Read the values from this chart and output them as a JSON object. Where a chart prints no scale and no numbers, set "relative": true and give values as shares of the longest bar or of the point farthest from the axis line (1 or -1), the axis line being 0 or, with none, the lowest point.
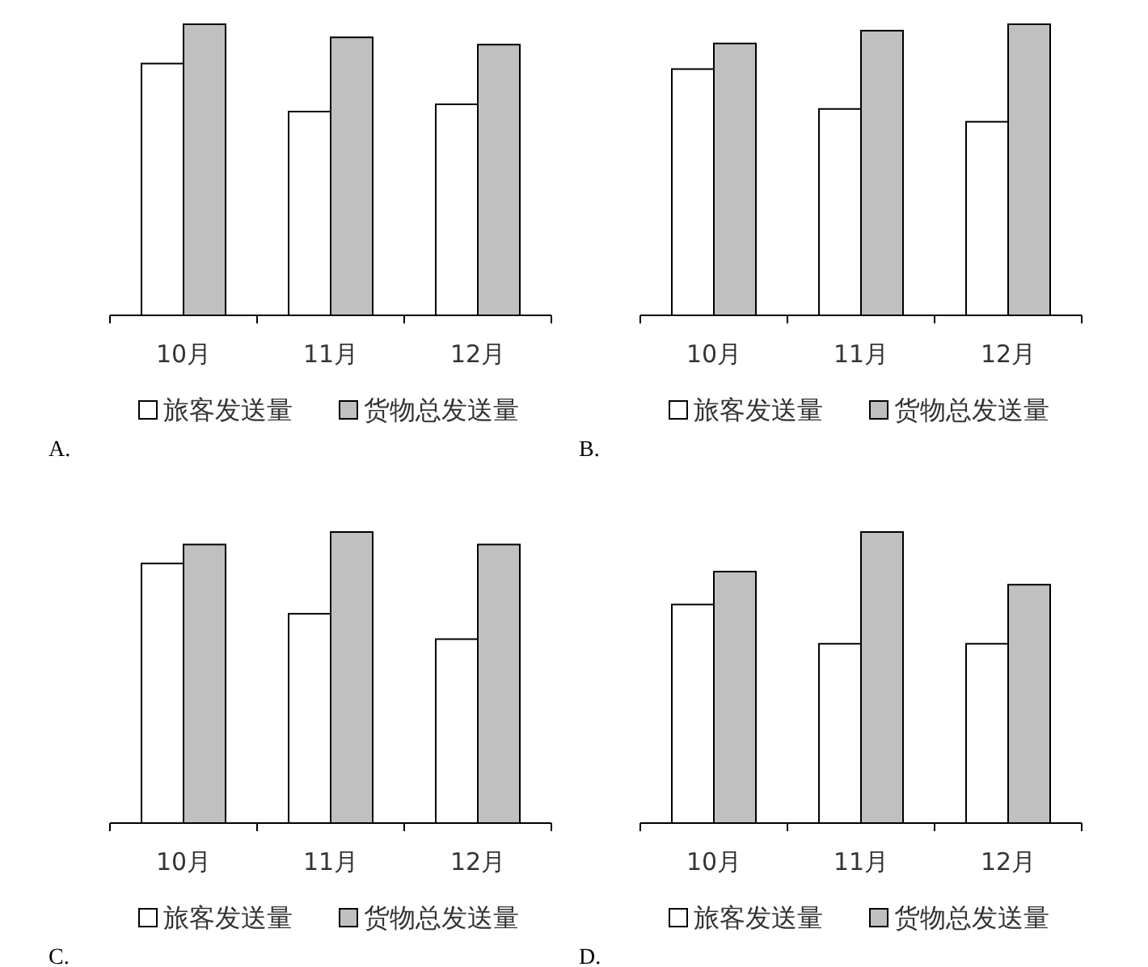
{
  "chart_data": [
    {
      "type": "bar",
      "relative": true,
      "categories": [
        "10月",
        "11月",
        "12月"
      ],
      "legend": "bottom",
      "annotations": [
        "A."
      ],
      "series": [
        {
          "name": "旅客发送量",
          "color": "#ffffff",
          "values": [
            0.865,
            0.7,
            0.725
          ]
        },
        {
          "name": "货物总发送量",
          "color": "#c0c0c0",
          "values": [
            1,
            0.955,
            0.93
          ]
        }
      ]
    },
    {
      "type": "bar",
      "relative": true,
      "categories": [
        "10月",
        "11月",
        "12月"
      ],
      "legend": "bottom",
      "annotations": [
        "B."
      ],
      "series": [
        {
          "name": "旅客发送量",
          "color": "#ffffff",
          "values": [
            0.846,
            0.709,
            0.665
          ]
        },
        {
          "name": "货物总发送量",
          "color": "#c0c0c0",
          "values": [
            0.934,
            0.978,
            1
          ]
        }
      ]
    },
    {
      "type": "bar",
      "relative": true,
      "categories": [
        "10月",
        "11月",
        "12月"
      ],
      "legend": "bottom",
      "annotations": [
        "C."
      ],
      "series": [
        {
          "name": "旅客发送量",
          "color": "#ffffff",
          "values": [
            0.892,
            0.719,
            0.632
          ]
        },
        {
          "name": "货物总发送量",
          "color": "#c0c0c0",
          "values": [
            0.957,
            1,
            0.957
          ]
        }
      ]
    },
    {
      "type": "bar",
      "relative": true,
      "categories": [
        "10月",
        "11月",
        "12月"
      ],
      "legend": "bottom",
      "annotations": [
        "D."
      ],
      "series": [
        {
          "name": "旅客发送量",
          "color": "#ffffff",
          "values": [
            0.751,
            0.616,
            0.616
          ]
        },
        {
          "name": "货物总发送量",
          "color": "#c0c0c0",
          "values": [
            0.864,
            1,
            0.819
          ]
        }
      ]
    }
  ]
}
